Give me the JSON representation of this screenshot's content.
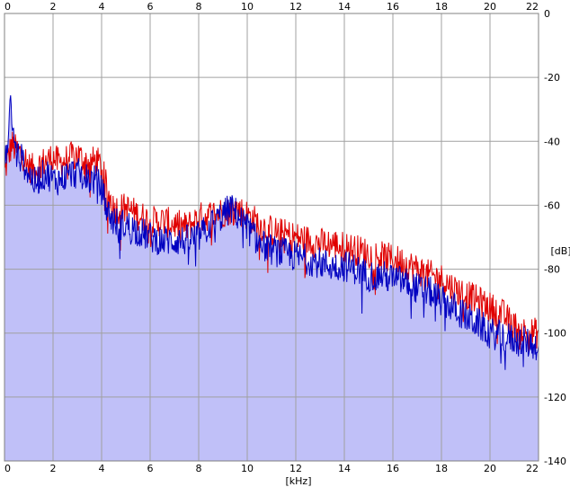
{
  "chart_data": {
    "type": "area",
    "title": "",
    "xlabel": "[kHz]",
    "ylabel": "[dB]",
    "xlim": [
      0,
      22
    ],
    "ylim": [
      -140,
      0
    ],
    "x_ticks": [
      "0",
      "2",
      "4",
      "6",
      "8",
      "10",
      "12",
      "14",
      "16",
      "18",
      "20",
      "22"
    ],
    "y_ticks": [
      "0",
      "-20",
      "-40",
      "-60",
      "-80",
      "-100",
      "-120",
      "-140"
    ],
    "grid": true,
    "legend": "none",
    "colors": {
      "fill": "#c0c0f8",
      "red_line": "#e00000",
      "blue_line": "#0000c0",
      "grid": "#a0a0a0"
    },
    "series": [
      {
        "color": "red",
        "x": [
          0,
          0.15,
          0.3,
          0.5,
          0.75,
          1,
          1.25,
          1.5,
          1.75,
          2,
          2.25,
          2.5,
          2.75,
          3,
          3.25,
          3.5,
          3.75,
          4,
          4.25,
          4.5,
          4.75,
          5,
          5.5,
          6,
          6.5,
          7,
          7.5,
          8,
          8.5,
          9,
          9.5,
          10,
          10.5,
          11,
          11.5,
          12,
          12.5,
          13,
          13.5,
          14,
          14.5,
          15,
          15.5,
          16,
          16.5,
          17,
          17.5,
          18,
          18.5,
          19,
          19.5,
          20,
          20.5,
          21,
          21.5,
          22
        ],
        "y": [
          -50,
          -45,
          -41,
          -43,
          -44,
          -48,
          -49,
          -47,
          -46,
          -45,
          -47,
          -46,
          -45,
          -44,
          -46,
          -47,
          -46,
          -48,
          -56,
          -61,
          -61,
          -61,
          -63,
          -65,
          -65,
          -66,
          -67,
          -64,
          -63,
          -62,
          -61,
          -63,
          -66,
          -68,
          -69,
          -70,
          -71,
          -72,
          -72,
          -73,
          -74,
          -75,
          -76,
          -77,
          -78,
          -80,
          -82,
          -83,
          -86,
          -88,
          -90,
          -92,
          -94,
          -98,
          -100,
          -100
        ]
      },
      {
        "color": "blue",
        "x": [
          0,
          0.15,
          0.25,
          0.35,
          0.5,
          0.75,
          1,
          1.25,
          1.5,
          1.75,
          2,
          2.25,
          2.5,
          2.75,
          3,
          3.25,
          3.5,
          3.75,
          4,
          4.25,
          4.5,
          4.75,
          5,
          5.5,
          6,
          6.5,
          7,
          7.5,
          8,
          8.5,
          9,
          9.3,
          9.5,
          10,
          10.5,
          11,
          11.5,
          12,
          12.5,
          13,
          13.5,
          14,
          14.5,
          15,
          15.5,
          16,
          16.5,
          17,
          17.5,
          18,
          18.5,
          19,
          19.5,
          20,
          20.5,
          21,
          21.5,
          22
        ],
        "y": [
          -48,
          -40,
          -26,
          -38,
          -44,
          -46,
          -50,
          -53,
          -51,
          -50,
          -52,
          -52,
          -51,
          -50,
          -50,
          -51,
          -52,
          -52,
          -55,
          -62,
          -65,
          -66,
          -66,
          -68,
          -70,
          -71,
          -71,
          -71,
          -70,
          -66,
          -63,
          -61,
          -62,
          -67,
          -72,
          -74,
          -75,
          -76,
          -77,
          -78,
          -79,
          -79,
          -80,
          -82,
          -82,
          -83,
          -84,
          -86,
          -87,
          -90,
          -92,
          -95,
          -97,
          -100,
          -101,
          -102,
          -103,
          -104
        ]
      }
    ]
  }
}
